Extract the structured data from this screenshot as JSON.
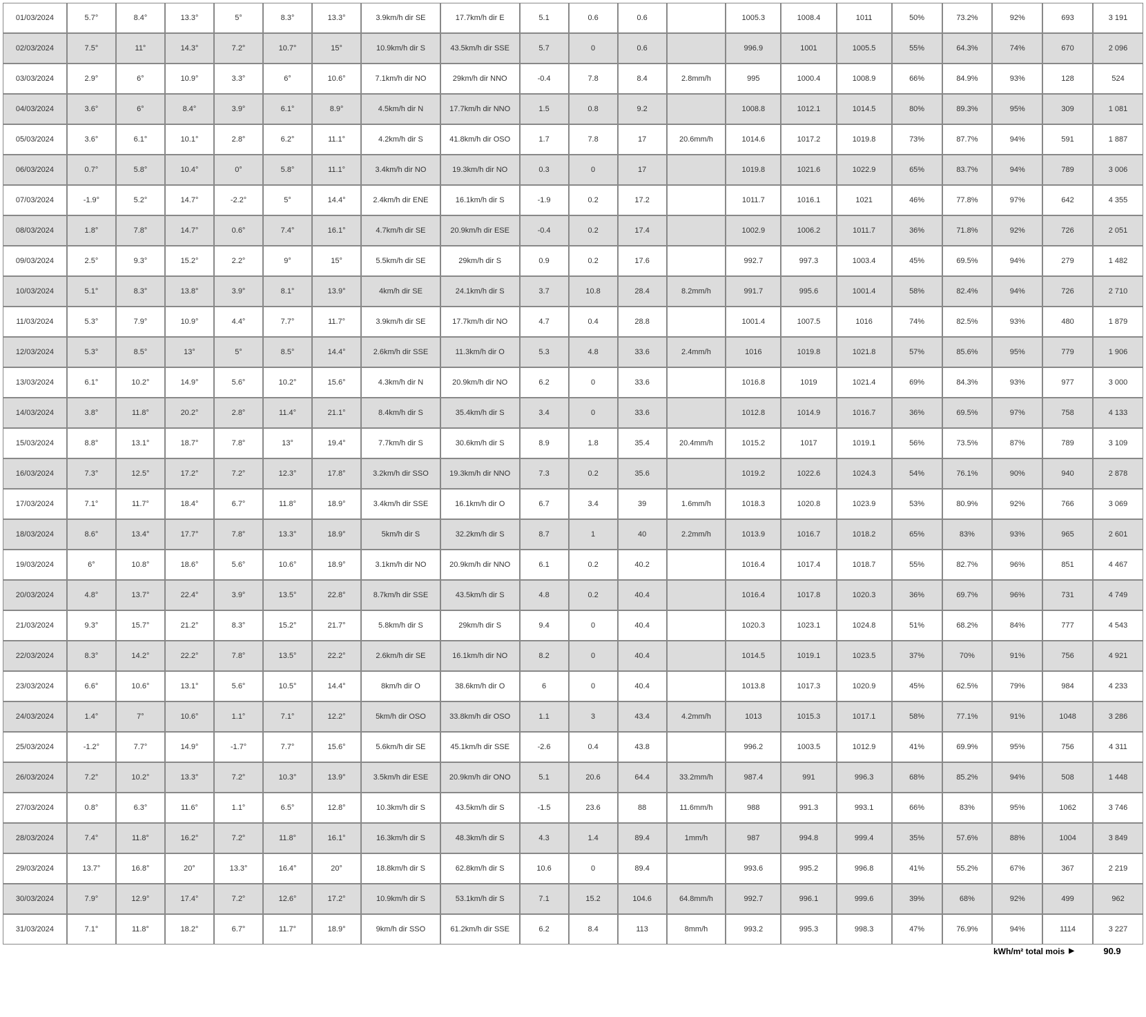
{
  "table": {
    "columnKeys": [
      "date",
      "t1",
      "t2",
      "t3",
      "t4",
      "t5",
      "t6",
      "wind1",
      "wind2",
      "v1",
      "v2",
      "v3",
      "rain",
      "p1",
      "p2",
      "p3",
      "h1",
      "h2",
      "h3",
      "n1",
      "n2"
    ],
    "rows": [
      {
        "date": "01/03/2024",
        "t1": "5.7°",
        "t2": "8.4°",
        "t3": "13.3°",
        "t4": "5°",
        "t5": "8.3°",
        "t6": "13.3°",
        "wind1": "3.9km/h dir SE",
        "wind2": "17.7km/h dir E",
        "v1": "5.1",
        "v2": "0.6",
        "v3": "0.6",
        "rain": "",
        "p1": "1005.3",
        "p2": "1008.4",
        "p3": "1011",
        "h1": "50%",
        "h2": "73.2%",
        "h3": "92%",
        "n1": "693",
        "n2": "3 191"
      },
      {
        "date": "02/03/2024",
        "t1": "7.5°",
        "t2": "11°",
        "t3": "14.3°",
        "t4": "7.2°",
        "t5": "10.7°",
        "t6": "15°",
        "wind1": "10.9km/h dir S",
        "wind2": "43.5km/h dir SSE",
        "v1": "5.7",
        "v2": "0",
        "v3": "0.6",
        "rain": "",
        "p1": "996.9",
        "p2": "1001",
        "p3": "1005.5",
        "h1": "55%",
        "h2": "64.3%",
        "h3": "74%",
        "n1": "670",
        "n2": "2 096"
      },
      {
        "date": "03/03/2024",
        "t1": "2.9°",
        "t2": "6°",
        "t3": "10.9°",
        "t4": "3.3°",
        "t5": "6°",
        "t6": "10.6°",
        "wind1": "7.1km/h dir NO",
        "wind2": "29km/h dir NNO",
        "v1": "-0.4",
        "v2": "7.8",
        "v3": "8.4",
        "rain": "2.8mm/h",
        "p1": "995",
        "p2": "1000.4",
        "p3": "1008.9",
        "h1": "66%",
        "h2": "84.9%",
        "h3": "93%",
        "n1": "128",
        "n2": "524"
      },
      {
        "date": "04/03/2024",
        "t1": "3.6°",
        "t2": "6°",
        "t3": "8.4°",
        "t4": "3.9°",
        "t5": "6.1°",
        "t6": "8.9°",
        "wind1": "4.5km/h dir N",
        "wind2": "17.7km/h dir NNO",
        "v1": "1.5",
        "v2": "0.8",
        "v3": "9.2",
        "rain": "",
        "p1": "1008.8",
        "p2": "1012.1",
        "p3": "1014.5",
        "h1": "80%",
        "h2": "89.3%",
        "h3": "95%",
        "n1": "309",
        "n2": "1 081"
      },
      {
        "date": "05/03/2024",
        "t1": "3.6°",
        "t2": "6.1°",
        "t3": "10.1°",
        "t4": "2.8°",
        "t5": "6.2°",
        "t6": "11.1°",
        "wind1": "4.2km/h dir S",
        "wind2": "41.8km/h dir OSO",
        "v1": "1.7",
        "v2": "7.8",
        "v3": "17",
        "rain": "20.6mm/h",
        "p1": "1014.6",
        "p2": "1017.2",
        "p3": "1019.8",
        "h1": "73%",
        "h2": "87.7%",
        "h3": "94%",
        "n1": "591",
        "n2": "1 887"
      },
      {
        "date": "06/03/2024",
        "t1": "0.7°",
        "t2": "5.8°",
        "t3": "10.4°",
        "t4": "0°",
        "t5": "5.8°",
        "t6": "11.1°",
        "wind1": "3.4km/h dir NO",
        "wind2": "19.3km/h dir NO",
        "v1": "0.3",
        "v2": "0",
        "v3": "17",
        "rain": "",
        "p1": "1019.8",
        "p2": "1021.6",
        "p3": "1022.9",
        "h1": "65%",
        "h2": "83.7%",
        "h3": "94%",
        "n1": "789",
        "n2": "3 006"
      },
      {
        "date": "07/03/2024",
        "t1": "-1.9°",
        "t2": "5.2°",
        "t3": "14.7°",
        "t4": "-2.2°",
        "t5": "5°",
        "t6": "14.4°",
        "wind1": "2.4km/h dir ENE",
        "wind2": "16.1km/h dir S",
        "v1": "-1.9",
        "v2": "0.2",
        "v3": "17.2",
        "rain": "",
        "p1": "1011.7",
        "p2": "1016.1",
        "p3": "1021",
        "h1": "46%",
        "h2": "77.8%",
        "h3": "97%",
        "n1": "642",
        "n2": "4 355"
      },
      {
        "date": "08/03/2024",
        "t1": "1.8°",
        "t2": "7.8°",
        "t3": "14.7°",
        "t4": "0.6°",
        "t5": "7.4°",
        "t6": "16.1°",
        "wind1": "4.7km/h dir SE",
        "wind2": "20.9km/h dir ESE",
        "v1": "-0.4",
        "v2": "0.2",
        "v3": "17.4",
        "rain": "",
        "p1": "1002.9",
        "p2": "1006.2",
        "p3": "1011.7",
        "h1": "36%",
        "h2": "71.8%",
        "h3": "92%",
        "n1": "726",
        "n2": "2 051"
      },
      {
        "date": "09/03/2024",
        "t1": "2.5°",
        "t2": "9.3°",
        "t3": "15.2°",
        "t4": "2.2°",
        "t5": "9°",
        "t6": "15°",
        "wind1": "5.5km/h dir SE",
        "wind2": "29km/h dir S",
        "v1": "0.9",
        "v2": "0.2",
        "v3": "17.6",
        "rain": "",
        "p1": "992.7",
        "p2": "997.3",
        "p3": "1003.4",
        "h1": "45%",
        "h2": "69.5%",
        "h3": "94%",
        "n1": "279",
        "n2": "1 482"
      },
      {
        "date": "10/03/2024",
        "t1": "5.1°",
        "t2": "8.3°",
        "t3": "13.8°",
        "t4": "3.9°",
        "t5": "8.1°",
        "t6": "13.9°",
        "wind1": "4km/h dir SE",
        "wind2": "24.1km/h dir S",
        "v1": "3.7",
        "v2": "10.8",
        "v3": "28.4",
        "rain": "8.2mm/h",
        "p1": "991.7",
        "p2": "995.6",
        "p3": "1001.4",
        "h1": "58%",
        "h2": "82.4%",
        "h3": "94%",
        "n1": "726",
        "n2": "2 710"
      },
      {
        "date": "11/03/2024",
        "t1": "5.3°",
        "t2": "7.9°",
        "t3": "10.9°",
        "t4": "4.4°",
        "t5": "7.7°",
        "t6": "11.7°",
        "wind1": "3.9km/h dir SE",
        "wind2": "17.7km/h dir NO",
        "v1": "4.7",
        "v2": "0.4",
        "v3": "28.8",
        "rain": "",
        "p1": "1001.4",
        "p2": "1007.5",
        "p3": "1016",
        "h1": "74%",
        "h2": "82.5%",
        "h3": "93%",
        "n1": "480",
        "n2": "1 879"
      },
      {
        "date": "12/03/2024",
        "t1": "5.3°",
        "t2": "8.5°",
        "t3": "13°",
        "t4": "5°",
        "t5": "8.5°",
        "t6": "14.4°",
        "wind1": "2.6km/h dir SSE",
        "wind2": "11.3km/h dir O",
        "v1": "5.3",
        "v2": "4.8",
        "v3": "33.6",
        "rain": "2.4mm/h",
        "p1": "1016",
        "p2": "1019.8",
        "p3": "1021.8",
        "h1": "57%",
        "h2": "85.6%",
        "h3": "95%",
        "n1": "779",
        "n2": "1 906"
      },
      {
        "date": "13/03/2024",
        "t1": "6.1°",
        "t2": "10.2°",
        "t3": "14.9°",
        "t4": "5.6°",
        "t5": "10.2°",
        "t6": "15.6°",
        "wind1": "4.3km/h dir N",
        "wind2": "20.9km/h dir NO",
        "v1": "6.2",
        "v2": "0",
        "v3": "33.6",
        "rain": "",
        "p1": "1016.8",
        "p2": "1019",
        "p3": "1021.4",
        "h1": "69%",
        "h2": "84.3%",
        "h3": "93%",
        "n1": "977",
        "n2": "3 000"
      },
      {
        "date": "14/03/2024",
        "t1": "3.8°",
        "t2": "11.8°",
        "t3": "20.2°",
        "t4": "2.8°",
        "t5": "11.4°",
        "t6": "21.1°",
        "wind1": "8.4km/h dir S",
        "wind2": "35.4km/h dir S",
        "v1": "3.4",
        "v2": "0",
        "v3": "33.6",
        "rain": "",
        "p1": "1012.8",
        "p2": "1014.9",
        "p3": "1016.7",
        "h1": "36%",
        "h2": "69.5%",
        "h3": "97%",
        "n1": "758",
        "n2": "4 133"
      },
      {
        "date": "15/03/2024",
        "t1": "8.8°",
        "t2": "13.1°",
        "t3": "18.7°",
        "t4": "7.8°",
        "t5": "13°",
        "t6": "19.4°",
        "wind1": "7.7km/h dir S",
        "wind2": "30.6km/h dir S",
        "v1": "8.9",
        "v2": "1.8",
        "v3": "35.4",
        "rain": "20.4mm/h",
        "p1": "1015.2",
        "p2": "1017",
        "p3": "1019.1",
        "h1": "56%",
        "h2": "73.5%",
        "h3": "87%",
        "n1": "789",
        "n2": "3 109"
      },
      {
        "date": "16/03/2024",
        "t1": "7.3°",
        "t2": "12.5°",
        "t3": "17.2°",
        "t4": "7.2°",
        "t5": "12.3°",
        "t6": "17.8°",
        "wind1": "3.2km/h dir SSO",
        "wind2": "19.3km/h dir NNO",
        "v1": "7.3",
        "v2": "0.2",
        "v3": "35.6",
        "rain": "",
        "p1": "1019.2",
        "p2": "1022.6",
        "p3": "1024.3",
        "h1": "54%",
        "h2": "76.1%",
        "h3": "90%",
        "n1": "940",
        "n2": "2 878"
      },
      {
        "date": "17/03/2024",
        "t1": "7.1°",
        "t2": "11.7°",
        "t3": "18.4°",
        "t4": "6.7°",
        "t5": "11.8°",
        "t6": "18.9°",
        "wind1": "3.4km/h dir SSE",
        "wind2": "16.1km/h dir O",
        "v1": "6.7",
        "v2": "3.4",
        "v3": "39",
        "rain": "1.6mm/h",
        "p1": "1018.3",
        "p2": "1020.8",
        "p3": "1023.9",
        "h1": "53%",
        "h2": "80.9%",
        "h3": "92%",
        "n1": "766",
        "n2": "3 069"
      },
      {
        "date": "18/03/2024",
        "t1": "8.6°",
        "t2": "13.4°",
        "t3": "17.7°",
        "t4": "7.8°",
        "t5": "13.3°",
        "t6": "18.9°",
        "wind1": "5km/h dir S",
        "wind2": "32.2km/h dir S",
        "v1": "8.7",
        "v2": "1",
        "v3": "40",
        "rain": "2.2mm/h",
        "p1": "1013.9",
        "p2": "1016.7",
        "p3": "1018.2",
        "h1": "65%",
        "h2": "83%",
        "h3": "93%",
        "n1": "965",
        "n2": "2 601"
      },
      {
        "date": "19/03/2024",
        "t1": "6°",
        "t2": "10.8°",
        "t3": "18.6°",
        "t4": "5.6°",
        "t5": "10.6°",
        "t6": "18.9°",
        "wind1": "3.1km/h dir NO",
        "wind2": "20.9km/h dir NNO",
        "v1": "6.1",
        "v2": "0.2",
        "v3": "40.2",
        "rain": "",
        "p1": "1016.4",
        "p2": "1017.4",
        "p3": "1018.7",
        "h1": "55%",
        "h2": "82.7%",
        "h3": "96%",
        "n1": "851",
        "n2": "4 467"
      },
      {
        "date": "20/03/2024",
        "t1": "4.8°",
        "t2": "13.7°",
        "t3": "22.4°",
        "t4": "3.9°",
        "t5": "13.5°",
        "t6": "22.8°",
        "wind1": "8.7km/h dir SSE",
        "wind2": "43.5km/h dir S",
        "v1": "4.8",
        "v2": "0.2",
        "v3": "40.4",
        "rain": "",
        "p1": "1016.4",
        "p2": "1017.8",
        "p3": "1020.3",
        "h1": "36%",
        "h2": "69.7%",
        "h3": "96%",
        "n1": "731",
        "n2": "4 749"
      },
      {
        "date": "21/03/2024",
        "t1": "9.3°",
        "t2": "15.7°",
        "t3": "21.2°",
        "t4": "8.3°",
        "t5": "15.2°",
        "t6": "21.7°",
        "wind1": "5.8km/h dir S",
        "wind2": "29km/h dir S",
        "v1": "9.4",
        "v2": "0",
        "v3": "40.4",
        "rain": "",
        "p1": "1020.3",
        "p2": "1023.1",
        "p3": "1024.8",
        "h1": "51%",
        "h2": "68.2%",
        "h3": "84%",
        "n1": "777",
        "n2": "4 543"
      },
      {
        "date": "22/03/2024",
        "t1": "8.3°",
        "t2": "14.2°",
        "t3": "22.2°",
        "t4": "7.8°",
        "t5": "13.5°",
        "t6": "22.2°",
        "wind1": "2.6km/h dir SE",
        "wind2": "16.1km/h dir NO",
        "v1": "8.2",
        "v2": "0",
        "v3": "40.4",
        "rain": "",
        "p1": "1014.5",
        "p2": "1019.1",
        "p3": "1023.5",
        "h1": "37%",
        "h2": "70%",
        "h3": "91%",
        "n1": "756",
        "n2": "4 921"
      },
      {
        "date": "23/03/2024",
        "t1": "6.6°",
        "t2": "10.6°",
        "t3": "13.1°",
        "t4": "5.6°",
        "t5": "10.5°",
        "t6": "14.4°",
        "wind1": "8km/h dir O",
        "wind2": "38.6km/h dir O",
        "v1": "6",
        "v2": "0",
        "v3": "40.4",
        "rain": "",
        "p1": "1013.8",
        "p2": "1017.3",
        "p3": "1020.9",
        "h1": "45%",
        "h2": "62.5%",
        "h3": "79%",
        "n1": "984",
        "n2": "4 233"
      },
      {
        "date": "24/03/2024",
        "t1": "1.4°",
        "t2": "7°",
        "t3": "10.6°",
        "t4": "1.1°",
        "t5": "7.1°",
        "t6": "12.2°",
        "wind1": "5km/h dir OSO",
        "wind2": "33.8km/h dir OSO",
        "v1": "1.1",
        "v2": "3",
        "v3": "43.4",
        "rain": "4.2mm/h",
        "p1": "1013",
        "p2": "1015.3",
        "p3": "1017.1",
        "h1": "58%",
        "h2": "77.1%",
        "h3": "91%",
        "n1": "1048",
        "n2": "3 286"
      },
      {
        "date": "25/03/2024",
        "t1": "-1.2°",
        "t2": "7.7°",
        "t3": "14.9°",
        "t4": "-1.7°",
        "t5": "7.7°",
        "t6": "15.6°",
        "wind1": "5.6km/h dir SE",
        "wind2": "45.1km/h dir SSE",
        "v1": "-2.6",
        "v2": "0.4",
        "v3": "43.8",
        "rain": "",
        "p1": "996.2",
        "p2": "1003.5",
        "p3": "1012.9",
        "h1": "41%",
        "h2": "69.9%",
        "h3": "95%",
        "n1": "756",
        "n2": "4 311"
      },
      {
        "date": "26/03/2024",
        "t1": "7.2°",
        "t2": "10.2°",
        "t3": "13.3°",
        "t4": "7.2°",
        "t5": "10.3°",
        "t6": "13.9°",
        "wind1": "3.5km/h dir ESE",
        "wind2": "20.9km/h dir ONO",
        "v1": "5.1",
        "v2": "20.6",
        "v3": "64.4",
        "rain": "33.2mm/h",
        "p1": "987.4",
        "p2": "991",
        "p3": "996.3",
        "h1": "68%",
        "h2": "85.2%",
        "h3": "94%",
        "n1": "508",
        "n2": "1 448"
      },
      {
        "date": "27/03/2024",
        "t1": "0.8°",
        "t2": "6.3°",
        "t3": "11.6°",
        "t4": "1.1°",
        "t5": "6.5°",
        "t6": "12.8°",
        "wind1": "10.3km/h dir S",
        "wind2": "43.5km/h dir S",
        "v1": "-1.5",
        "v2": "23.6",
        "v3": "88",
        "rain": "11.6mm/h",
        "p1": "988",
        "p2": "991.3",
        "p3": "993.1",
        "h1": "66%",
        "h2": "83%",
        "h3": "95%",
        "n1": "1062",
        "n2": "3 746"
      },
      {
        "date": "28/03/2024",
        "t1": "7.4°",
        "t2": "11.8°",
        "t3": "16.2°",
        "t4": "7.2°",
        "t5": "11.8°",
        "t6": "16.1°",
        "wind1": "16.3km/h dir S",
        "wind2": "48.3km/h dir S",
        "v1": "4.3",
        "v2": "1.4",
        "v3": "89.4",
        "rain": "1mm/h",
        "p1": "987",
        "p2": "994.8",
        "p3": "999.4",
        "h1": "35%",
        "h2": "57.6%",
        "h3": "88%",
        "n1": "1004",
        "n2": "3 849"
      },
      {
        "date": "29/03/2024",
        "t1": "13.7°",
        "t2": "16.8°",
        "t3": "20°",
        "t4": "13.3°",
        "t5": "16.4°",
        "t6": "20°",
        "wind1": "18.8km/h dir S",
        "wind2": "62.8km/h dir S",
        "v1": "10.6",
        "v2": "0",
        "v3": "89.4",
        "rain": "",
        "p1": "993.6",
        "p2": "995.2",
        "p3": "996.8",
        "h1": "41%",
        "h2": "55.2%",
        "h3": "67%",
        "n1": "367",
        "n2": "2 219"
      },
      {
        "date": "30/03/2024",
        "t1": "7.9°",
        "t2": "12.9°",
        "t3": "17.4°",
        "t4": "7.2°",
        "t5": "12.6°",
        "t6": "17.2°",
        "wind1": "10.9km/h dir S",
        "wind2": "53.1km/h dir S",
        "v1": "7.1",
        "v2": "15.2",
        "v3": "104.6",
        "rain": "64.8mm/h",
        "p1": "992.7",
        "p2": "996.1",
        "p3": "999.6",
        "h1": "39%",
        "h2": "68%",
        "h3": "92%",
        "n1": "499",
        "n2": "962"
      },
      {
        "date": "31/03/2024",
        "t1": "7.1°",
        "t2": "11.8°",
        "t3": "18.2°",
        "t4": "6.7°",
        "t5": "11.7°",
        "t6": "18.9°",
        "wind1": "9km/h dir SSO",
        "wind2": "61.2km/h dir SSE",
        "v1": "6.2",
        "v2": "8.4",
        "v3": "113",
        "rain": "8mm/h",
        "p1": "993.2",
        "p2": "995.3",
        "p3": "998.3",
        "h1": "47%",
        "h2": "76.9%",
        "h3": "94%",
        "n1": "1114",
        "n2": "3 227"
      }
    ]
  },
  "footer": {
    "label": "kWh/m² total mois",
    "arrow": "▶",
    "value": "90.9"
  }
}
